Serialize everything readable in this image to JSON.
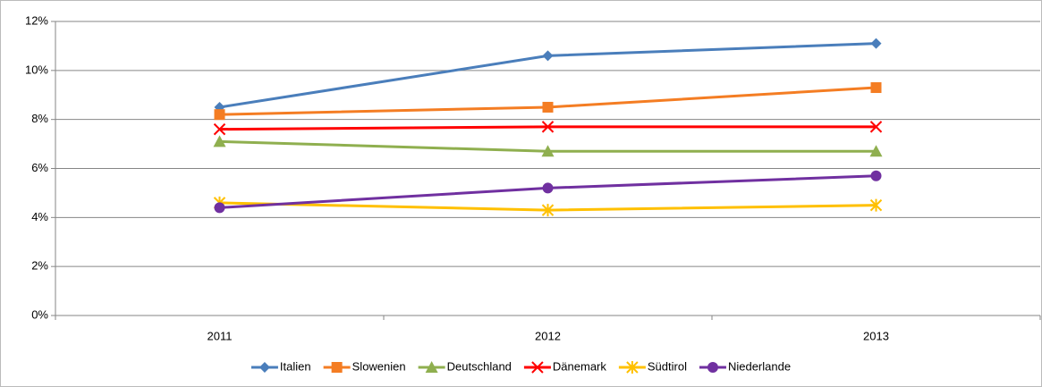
{
  "chart_data": {
    "type": "line",
    "categories": [
      "2011",
      "2012",
      "2013"
    ],
    "series": [
      {
        "name": "Italien",
        "color": "#4a7ebb",
        "marker": "diamond",
        "values": [
          8.5,
          10.6,
          11.1
        ]
      },
      {
        "name": "Slowenien",
        "color": "#f47d23",
        "marker": "square",
        "values": [
          8.2,
          8.5,
          9.3
        ]
      },
      {
        "name": "Deutschland",
        "color": "#8faf4f",
        "marker": "triangle",
        "values": [
          7.1,
          6.7,
          6.7
        ]
      },
      {
        "name": "Dänemark",
        "color": "#ff0000",
        "marker": "x",
        "values": [
          7.6,
          7.7,
          7.7
        ]
      },
      {
        "name": "Südtirol",
        "color": "#ffc000",
        "marker": "star",
        "values": [
          4.6,
          4.3,
          4.5
        ]
      },
      {
        "name": "Niederlande",
        "color": "#7030a0",
        "marker": "circle",
        "values": [
          4.4,
          5.2,
          5.7
        ]
      }
    ],
    "ylim": [
      0,
      12
    ],
    "yticks": [
      {
        "value": 0,
        "label": "0%"
      },
      {
        "value": 2,
        "label": "2%"
      },
      {
        "value": 4,
        "label": "4%"
      },
      {
        "value": 6,
        "label": "6%"
      },
      {
        "value": 8,
        "label": "8%"
      },
      {
        "value": 10,
        "label": "10%"
      },
      {
        "value": 12,
        "label": "12%"
      }
    ],
    "grid": true,
    "legend": "bottom"
  }
}
